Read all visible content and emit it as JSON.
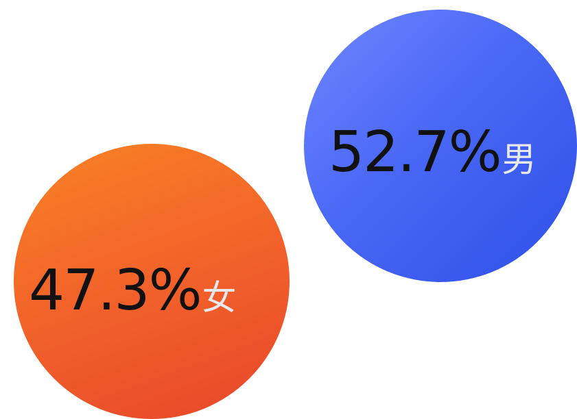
{
  "chart_data": {
    "type": "pie",
    "categories": [
      "男",
      "女"
    ],
    "series": [
      {
        "values": [
          52.7,
          47.3
        ]
      }
    ],
    "items": [
      {
        "label": "男",
        "value": 52.7,
        "display": "52.7%",
        "color": "#4a68f6"
      },
      {
        "label": "女",
        "value": 47.3,
        "display": "47.3%",
        "color": "#f2622a"
      }
    ],
    "unit": "%"
  }
}
